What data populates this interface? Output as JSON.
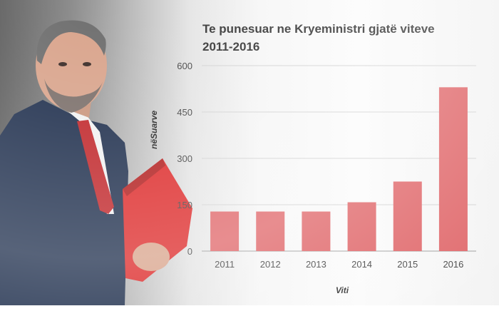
{
  "chart_data": {
    "type": "bar",
    "title_lines": [
      "Te punesuar ne Kryeministri gjatë viteve",
      "2011-2016"
    ],
    "xlabel": "Viti",
    "ylabel": "nëSuarve",
    "categories": [
      "2011",
      "2012",
      "2013",
      "2014",
      "2015",
      "2016"
    ],
    "values": [
      128,
      128,
      128,
      158,
      225,
      530
    ],
    "yticks": [
      "0",
      "150",
      "300",
      "450",
      "600"
    ],
    "ylim": [
      0,
      600
    ],
    "grid": true,
    "bar_color": "#e0676a"
  },
  "photo": {
    "suit_color": "#1f2f4d",
    "tie_color": "#c0262a",
    "folder_color": "#dd2a2a",
    "skin_color": "#d9a48c"
  }
}
